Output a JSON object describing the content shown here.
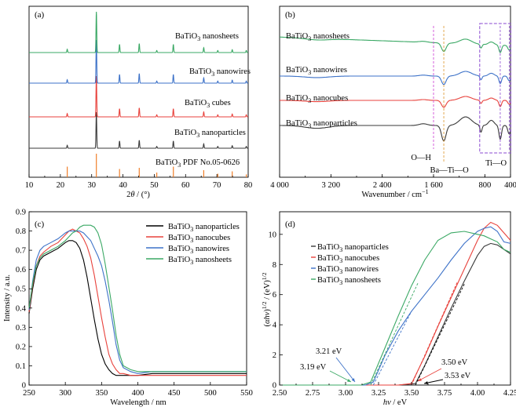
{
  "chart_data": [
    {
      "panel": "(a)",
      "type": "line",
      "xlabel_parts": [
        "2",
        "θ",
        " / (°)"
      ],
      "xlim": [
        10,
        80
      ],
      "xticks": [
        10,
        20,
        30,
        40,
        50,
        60,
        70,
        80
      ],
      "offsets": [
        0,
        0.9,
        1.8,
        2.7
      ],
      "reference": {
        "name": "BaTiO₃ PDF No.05-0626",
        "color": "#f07f2a",
        "peaks": [
          [
            22.2,
            0.45
          ],
          [
            31.5,
            1.0
          ],
          [
            38.9,
            0.35
          ],
          [
            45.2,
            0.4
          ],
          [
            50.8,
            0.2
          ],
          [
            56.1,
            0.45
          ],
          [
            65.8,
            0.3
          ],
          [
            70.3,
            0.15
          ],
          [
            74.9,
            0.25
          ],
          [
            79.4,
            0.12
          ]
        ]
      },
      "peaks": [
        [
          22.2,
          0.08
        ],
        [
          31.5,
          1.0
        ],
        [
          38.9,
          0.2
        ],
        [
          45.2,
          0.22
        ],
        [
          50.8,
          0.05
        ],
        [
          56.1,
          0.2
        ],
        [
          65.8,
          0.12
        ],
        [
          70.3,
          0.05
        ],
        [
          74.9,
          0.07
        ],
        [
          79.4,
          0.05
        ]
      ],
      "series": [
        {
          "name": "BaTiO₃ nanoparticles",
          "color": "#3a3a3a",
          "scale": 0.75
        },
        {
          "name": "BaTiO₃ cubes",
          "color": "#e8423c",
          "scale": 0.75
        },
        {
          "name": "BaTiO₃ nanowires",
          "color": "#3d72c8",
          "scale": 0.75
        },
        {
          "name": "BaTiO₃ nanosheets",
          "color": "#3aa864",
          "scale": 0.75
        }
      ]
    },
    {
      "panel": "(b)",
      "type": "line",
      "xlabel": "Wavenumber / cm",
      "xlabel_sup": "−1",
      "xlim": [
        4000,
        400
      ],
      "xticks": [
        4000,
        3200,
        2400,
        1600,
        800,
        400
      ],
      "xticklabels": [
        "4 000",
        "3 200",
        "2 400",
        "1 600",
        "800",
        "400"
      ],
      "series": [
        {
          "name": "BaTiO₃ nanoparticles",
          "color": "#3a3a3a"
        },
        {
          "name": "BaTiO₃ nanocubes",
          "color": "#e8423c"
        },
        {
          "name": "BaTiO₃ nanowires",
          "color": "#3d72c8"
        },
        {
          "name": "BaTiO₃ nanosheets",
          "color": "#3aa864"
        }
      ],
      "annotations": [
        {
          "text": "O—H",
          "x": 1600,
          "color": "#d14fd8"
        },
        {
          "text": "Ba—Ti—O",
          "x": 1440,
          "color": "#e0a040"
        },
        {
          "text": "Ti—O",
          "x": 600,
          "color": "#8a4ad0"
        }
      ]
    },
    {
      "panel": "(c)",
      "type": "line",
      "xlabel": "Wavelength / nm",
      "ylabel": "Intensity / a.u.",
      "xlim": [
        250,
        550
      ],
      "ylim": [
        0,
        0.9
      ],
      "xticks": [
        250,
        300,
        350,
        400,
        450,
        500,
        550
      ],
      "yticks": [
        0,
        0.1,
        0.2,
        0.3,
        0.4,
        0.5,
        0.6,
        0.7,
        0.8,
        0.9
      ],
      "legend": "top-right",
      "series": [
        {
          "name": "BaTiO₃ nanoparticles",
          "color": "#000000",
          "x": [
            250,
            255,
            260,
            265,
            270,
            280,
            290,
            300,
            305,
            310,
            315,
            320,
            325,
            330,
            335,
            340,
            345,
            350,
            355,
            360,
            365,
            370,
            375,
            380,
            390,
            400,
            420,
            450,
            480,
            510,
            550
          ],
          "y": [
            0.37,
            0.5,
            0.6,
            0.65,
            0.67,
            0.69,
            0.71,
            0.74,
            0.75,
            0.75,
            0.74,
            0.71,
            0.65,
            0.56,
            0.45,
            0.34,
            0.24,
            0.16,
            0.11,
            0.08,
            0.06,
            0.05,
            0.05,
            0.05,
            0.05,
            0.05,
            0.06,
            0.06,
            0.06,
            0.06,
            0.06
          ]
        },
        {
          "name": "BaTiO₃ nanocubes",
          "color": "#e8423c",
          "x": [
            250,
            255,
            260,
            265,
            270,
            280,
            290,
            300,
            305,
            310,
            315,
            320,
            325,
            330,
            335,
            340,
            345,
            350,
            355,
            360,
            365,
            370,
            375,
            380,
            390,
            400,
            420,
            450,
            480,
            510,
            550
          ],
          "y": [
            0.38,
            0.52,
            0.62,
            0.67,
            0.69,
            0.72,
            0.74,
            0.78,
            0.8,
            0.81,
            0.8,
            0.79,
            0.76,
            0.72,
            0.66,
            0.57,
            0.46,
            0.35,
            0.25,
            0.16,
            0.11,
            0.08,
            0.06,
            0.06,
            0.05,
            0.05,
            0.05,
            0.05,
            0.05,
            0.05,
            0.05
          ]
        },
        {
          "name": "BaTiO₃ nanowires",
          "color": "#3d72c8",
          "x": [
            250,
            255,
            260,
            265,
            270,
            280,
            290,
            300,
            305,
            310,
            315,
            320,
            325,
            330,
            335,
            340,
            345,
            350,
            355,
            360,
            365,
            370,
            375,
            380,
            390,
            400,
            420,
            450,
            480,
            510,
            550
          ],
          "y": [
            0.39,
            0.54,
            0.65,
            0.7,
            0.72,
            0.74,
            0.76,
            0.79,
            0.8,
            0.8,
            0.8,
            0.8,
            0.79,
            0.77,
            0.75,
            0.71,
            0.67,
            0.62,
            0.54,
            0.44,
            0.33,
            0.21,
            0.13,
            0.09,
            0.07,
            0.06,
            0.07,
            0.07,
            0.07,
            0.07,
            0.07
          ]
        },
        {
          "name": "BaTiO₃ nanosheets",
          "color": "#3aa864",
          "x": [
            250,
            255,
            260,
            265,
            270,
            280,
            290,
            300,
            305,
            310,
            315,
            320,
            325,
            330,
            335,
            340,
            345,
            350,
            355,
            360,
            365,
            370,
            375,
            380,
            390,
            400,
            420,
            450,
            480,
            510,
            550
          ],
          "y": [
            0.4,
            0.53,
            0.62,
            0.66,
            0.68,
            0.7,
            0.72,
            0.75,
            0.77,
            0.79,
            0.8,
            0.82,
            0.83,
            0.83,
            0.83,
            0.82,
            0.79,
            0.73,
            0.63,
            0.51,
            0.39,
            0.26,
            0.16,
            0.1,
            0.08,
            0.07,
            0.07,
            0.07,
            0.07,
            0.07,
            0.07
          ]
        }
      ]
    },
    {
      "panel": "(d)",
      "type": "line",
      "xlabel_parts": [
        "h",
        "ν",
        " / eV"
      ],
      "ylabel_text": "(αhν)^1/2 / (eV)^1/2",
      "xlim": [
        2.5,
        4.25
      ],
      "ylim": [
        0,
        11.5
      ],
      "xticks": [
        2.5,
        2.75,
        3.0,
        3.25,
        3.5,
        3.75,
        4.0,
        4.25
      ],
      "xticklabels": [
        "2.50",
        "2.75",
        "3.00",
        "3.25",
        "3.50",
        "3.75",
        "4.00",
        "4.25"
      ],
      "yticks": [
        0,
        2,
        4,
        6,
        8,
        10
      ],
      "legend": "left",
      "series": [
        {
          "name": "BaTiO₃ nanoparticles",
          "color": "#3a3a3a",
          "x": [
            2.5,
            3.4,
            3.53,
            3.6,
            3.7,
            3.8,
            3.9,
            4.0,
            4.05,
            4.1,
            4.15,
            4.2,
            4.25
          ],
          "y": [
            0,
            0,
            0.1,
            1.3,
            3.2,
            5.1,
            6.9,
            8.6,
            9.2,
            9.4,
            9.3,
            9.0,
            8.7
          ]
        },
        {
          "name": "BaTiO₃ nanocubes",
          "color": "#e8423c",
          "x": [
            2.5,
            3.4,
            3.5,
            3.6,
            3.7,
            3.8,
            3.9,
            4.0,
            4.05,
            4.1,
            4.15,
            4.2,
            4.25
          ],
          "y": [
            0,
            0,
            0.1,
            1.9,
            3.9,
            5.8,
            7.7,
            9.6,
            10.4,
            10.8,
            10.6,
            10.1,
            9.6
          ]
        },
        {
          "name": "BaTiO₃ nanowires",
          "color": "#3d72c8",
          "x": [
            2.5,
            3.15,
            3.21,
            3.3,
            3.4,
            3.5,
            3.6,
            3.7,
            3.8,
            3.9,
            4.0,
            4.05,
            4.1,
            4.15,
            4.2,
            4.25
          ],
          "y": [
            0,
            0,
            0.2,
            2.0,
            3.6,
            4.9,
            6.0,
            7.1,
            8.3,
            9.4,
            10.2,
            10.4,
            10.5,
            10.2,
            9.5,
            9.4
          ]
        },
        {
          "name": "BaTiO₃ nanosheets",
          "color": "#3aa864",
          "x": [
            2.5,
            3.12,
            3.19,
            3.3,
            3.4,
            3.5,
            3.6,
            3.7,
            3.8,
            3.9,
            4.0,
            4.05,
            4.1,
            4.15,
            4.2,
            4.25
          ],
          "y": [
            0,
            0,
            0.2,
            2.5,
            4.6,
            6.6,
            8.3,
            9.6,
            10.1,
            10.2,
            10.0,
            9.9,
            9.7,
            9.5,
            9.0,
            8.8
          ]
        }
      ],
      "annotations": [
        {
          "text": "3.21 eV",
          "color": "#3d72c8"
        },
        {
          "text": "3.19 eV",
          "color": "#3aa864"
        },
        {
          "text": "3.50 eV",
          "color": "#e8423c"
        },
        {
          "text": "3.53 eV",
          "color": "#000000"
        }
      ]
    }
  ]
}
